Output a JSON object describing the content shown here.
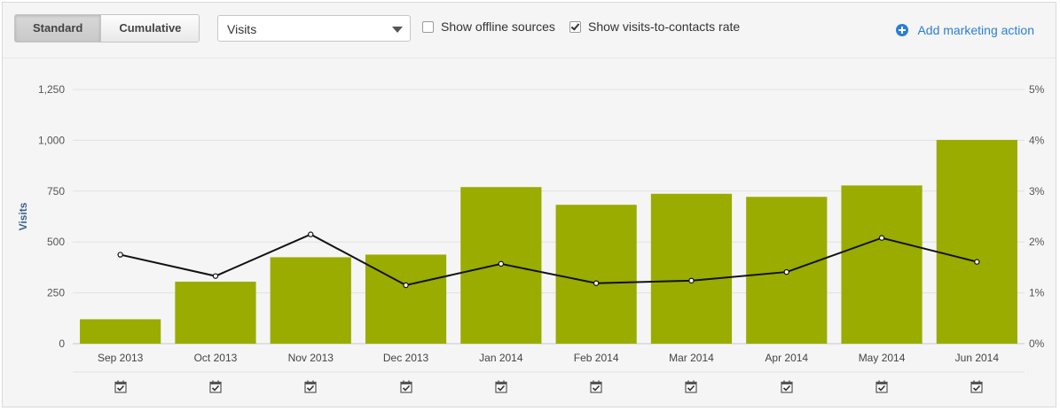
{
  "toolbar": {
    "mode_buttons": [
      {
        "label": "Standard",
        "active": true
      },
      {
        "label": "Cumulative",
        "active": false
      }
    ],
    "metric_select": {
      "value": "Visits",
      "icon": "chevron-down-icon"
    },
    "show_offline": {
      "label": "Show offline sources",
      "checked": false
    },
    "show_rate": {
      "label": "Show visits-to-contacts rate",
      "checked": true
    },
    "add_action": {
      "label": "Add marketing action",
      "icon": "plus-circle-icon"
    }
  },
  "chart_data": {
    "type": "bar",
    "categories": [
      "Sep 2013",
      "Oct 2013",
      "Nov 2013",
      "Dec 2013",
      "Jan 2014",
      "Feb 2014",
      "Mar 2014",
      "Apr 2014",
      "May 2014",
      "Jun 2014"
    ],
    "series": [
      {
        "values": [
          120,
          305,
          425,
          438,
          770,
          683,
          737,
          722,
          778,
          1002
        ],
        "axis": "left",
        "kind": "bar",
        "color": "#9aac00"
      },
      {
        "values": [
          1.75,
          1.33,
          2.15,
          1.15,
          1.57,
          1.19,
          1.24,
          1.41,
          2.08,
          1.61
        ],
        "axis": "right",
        "kind": "line",
        "color": "#111111"
      }
    ],
    "ylabel": "Visits",
    "ylim": [
      0,
      1250
    ],
    "y_ticks": [
      "0",
      "250",
      "500",
      "750",
      "1,000",
      "1,250"
    ],
    "y2lim": [
      0,
      5
    ],
    "y2_ticks": [
      "0%",
      "1%",
      "2%",
      "3%",
      "4%",
      "5%"
    ],
    "grid": true,
    "marker_icon": "calendar-check-icon"
  }
}
